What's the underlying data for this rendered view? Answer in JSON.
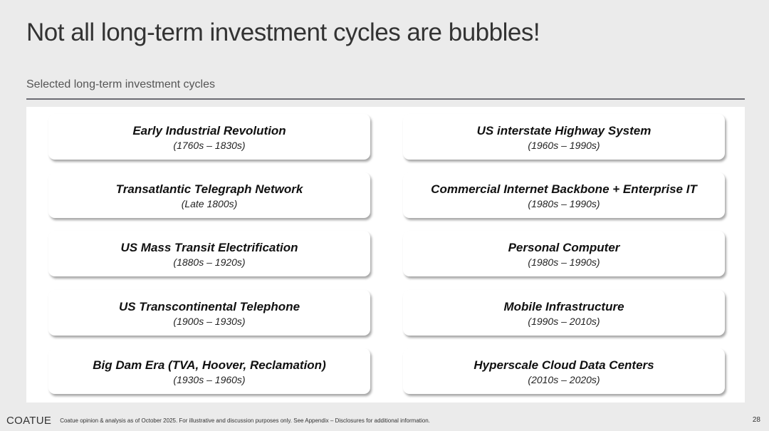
{
  "title": "Not all long-term investment cycles are bubbles!",
  "subtitle": "Selected long-term investment cycles",
  "cycles": [
    {
      "name": "Early Industrial Revolution",
      "period": "(1760s – 1830s)"
    },
    {
      "name": "US interstate Highway System",
      "period": "(1960s – 1990s)"
    },
    {
      "name": "Transatlantic Telegraph Network",
      "period": "(Late 1800s)"
    },
    {
      "name": "Commercial Internet Backbone + Enterprise IT",
      "period": "(1980s – 1990s)"
    },
    {
      "name": "US Mass Transit Electrification",
      "period": "(1880s – 1920s)"
    },
    {
      "name": "Personal Computer",
      "period": "(1980s – 1990s)"
    },
    {
      "name": "US Transcontinental Telephone",
      "period": "(1900s – 1930s)"
    },
    {
      "name": "Mobile Infrastructure",
      "period": "(1990s – 2010s)"
    },
    {
      "name": "Big Dam Era (TVA, Hoover, Reclamation)",
      "period": "(1930s – 1960s)"
    },
    {
      "name": "Hyperscale Cloud Data Centers",
      "period": "(2010s – 2020s)"
    }
  ],
  "footer": {
    "logo": "COATUE",
    "disclaimer": "Coatue opinion & analysis as of October 2025.  For illustrative and discussion purposes only. See Appendix – Disclosures for additional information.",
    "page_number": "28"
  }
}
